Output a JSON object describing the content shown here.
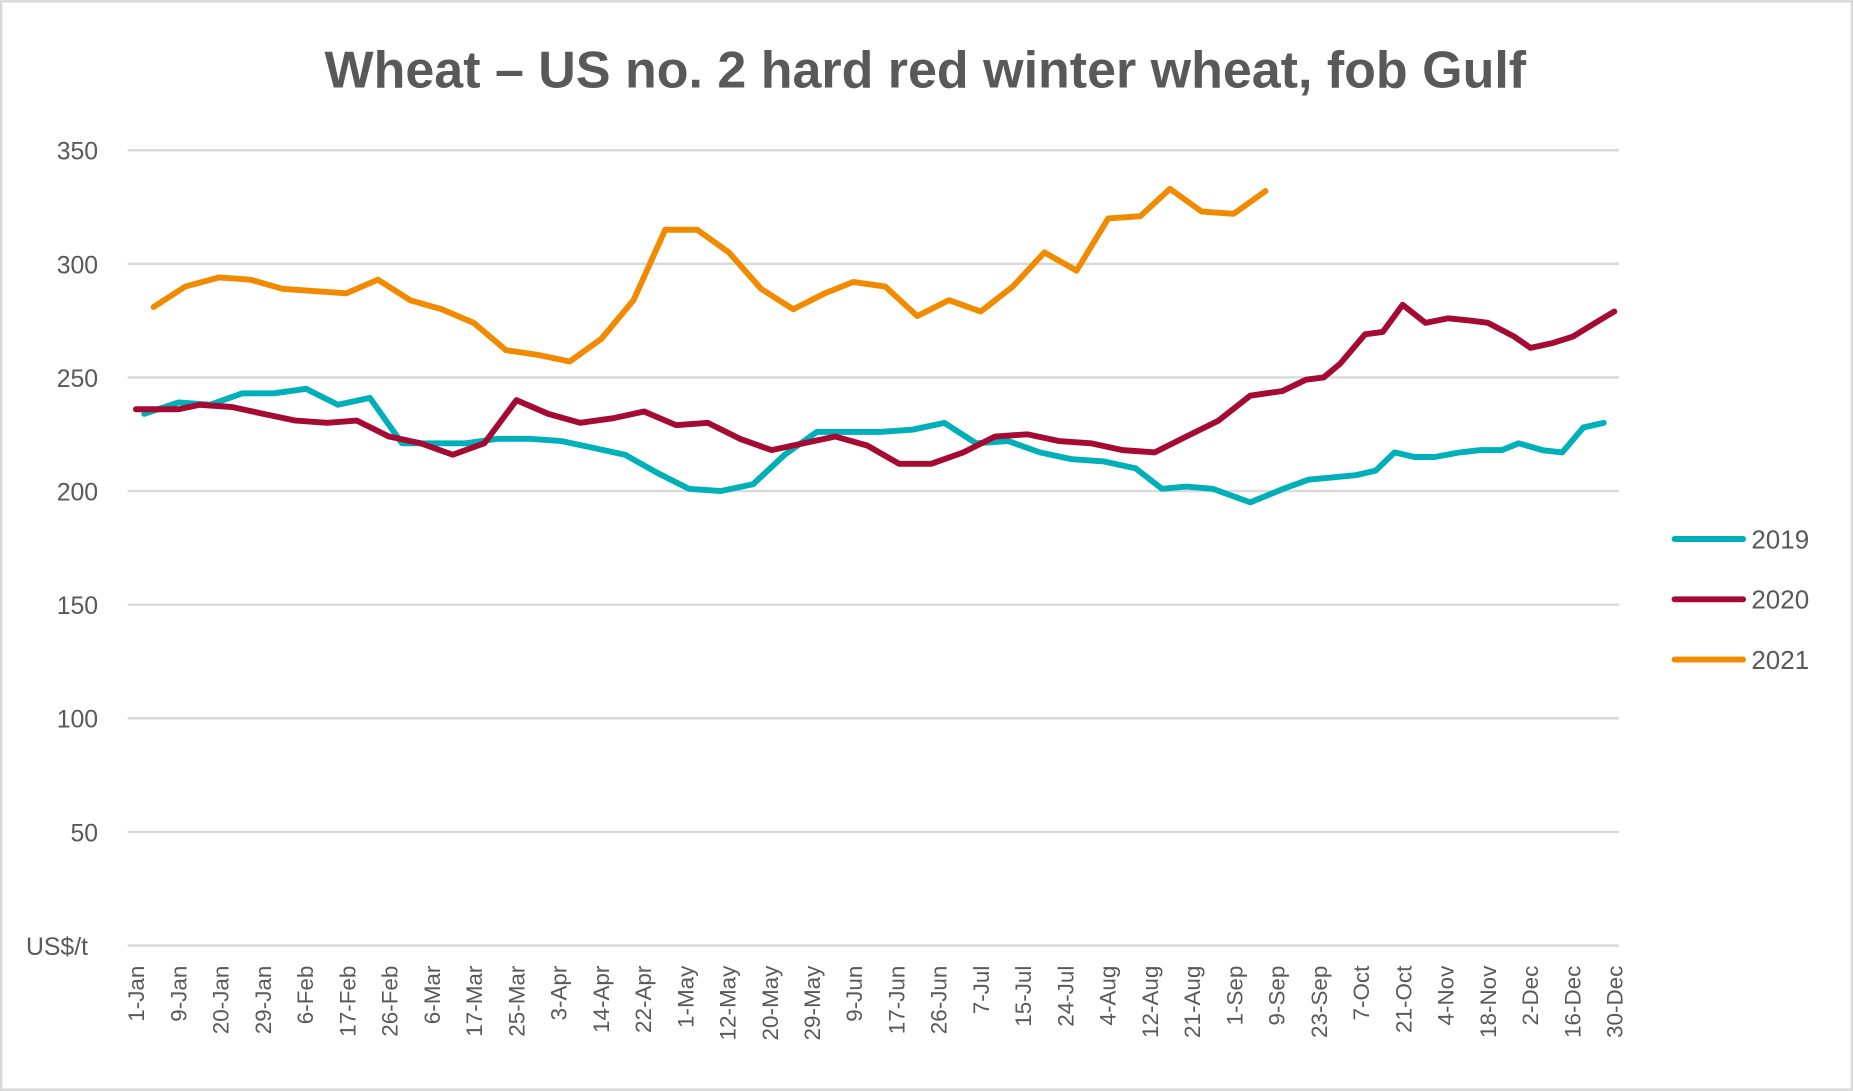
{
  "chart_data": {
    "type": "line",
    "title": "Wheat – US no. 2 hard red winter wheat, fob Gulf",
    "ylabel": "US$/t",
    "xlabel": "",
    "ylim": [
      0,
      350
    ],
    "yticks": [
      50,
      100,
      150,
      200,
      250,
      300,
      350
    ],
    "grid": true,
    "legend_position": "right",
    "x_tick_labels": [
      "1-Jan",
      "9-Jan",
      "20-Jan",
      "29-Jan",
      "6-Feb",
      "17-Feb",
      "26-Feb",
      "6-Mar",
      "17-Mar",
      "25-Mar",
      "3-Apr",
      "14-Apr",
      "22-Apr",
      "1-May",
      "12-May",
      "20-May",
      "29-May",
      "9-Jun",
      "17-Jun",
      "26-Jun",
      "7-Jul",
      "15-Jul",
      "24-Jul",
      "4-Aug",
      "12-Aug",
      "21-Aug",
      "1-Sep",
      "9-Sep",
      "23-Sep",
      "7-Oct",
      "21-Oct",
      "4-Nov",
      "18-Nov",
      "2-Dec",
      "16-Dec",
      "30-Dec"
    ],
    "series": [
      {
        "name": "2019",
        "color": "#00B0B9",
        "x": [
          0.2,
          1.01,
          1.76,
          2.52,
          3.27,
          4.03,
          4.78,
          5.54,
          6.3,
          7.05,
          7.81,
          8.56,
          9.32,
          10.07,
          10.83,
          11.58,
          12.34,
          13.09,
          13.85,
          14.61,
          15.36,
          16.12,
          16.87,
          17.63,
          18.38,
          19.14,
          19.89,
          20.65,
          21.4,
          22.16,
          22.92,
          23.67,
          24.29,
          24.87,
          25.49,
          26.38,
          27.17,
          27.76,
          28.32,
          28.88,
          29.35,
          29.8,
          30.27,
          30.75,
          31.34,
          31.81,
          32.34,
          32.74,
          33.3,
          33.77,
          34.27,
          34.75
        ],
        "values": [
          234,
          239,
          238,
          243,
          243,
          245,
          238,
          241,
          221,
          221,
          221,
          223,
          223,
          222,
          219,
          216,
          208,
          201,
          200,
          203,
          216,
          226,
          226,
          226,
          227,
          230,
          221,
          222,
          217,
          214,
          213,
          210,
          201,
          202,
          201,
          195,
          201,
          205,
          206,
          207,
          209,
          217,
          215,
          215,
          217,
          218,
          218,
          221,
          218,
          217,
          228,
          230
        ]
      },
      {
        "name": "2020",
        "color": "#A50A33",
        "x": [
          0,
          0.5,
          1.01,
          1.51,
          2.27,
          3.02,
          3.78,
          4.53,
          5.23,
          5.99,
          6.74,
          7.5,
          8.25,
          9.01,
          9.76,
          10.52,
          11.28,
          12.03,
          12.79,
          13.54,
          14.3,
          15.05,
          15.81,
          16.56,
          17.32,
          18.07,
          18.83,
          19.59,
          20.34,
          21.1,
          21.85,
          22.61,
          23.36,
          24.12,
          24.87,
          25.63,
          26.38,
          27.14,
          27.7,
          28.12,
          28.51,
          29.1,
          29.52,
          29.99,
          30.53,
          31.06,
          31.59,
          32.01,
          32.63,
          33.02,
          33.52,
          34.02,
          34.55,
          35.0
        ],
        "values": [
          236,
          236,
          236,
          238,
          237,
          234,
          231,
          230,
          231,
          224,
          221,
          216,
          221,
          240,
          234,
          230,
          232,
          235,
          229,
          230,
          223,
          218,
          221,
          224,
          220,
          212,
          212,
          217,
          224,
          225,
          222,
          221,
          218,
          217,
          224,
          231,
          242,
          244,
          249,
          250,
          256,
          269,
          270,
          282,
          274,
          276,
          275,
          274,
          268,
          263,
          265,
          268,
          274,
          279
        ]
      },
      {
        "name": "2021",
        "color": "#F28A00",
        "x": [
          0.42,
          1.17,
          1.96,
          2.71,
          3.47,
          4.22,
          4.98,
          5.73,
          6.49,
          7.24,
          8.0,
          8.76,
          9.5,
          10.27,
          11.02,
          11.78,
          12.53,
          13.29,
          14.04,
          14.8,
          15.56,
          16.31,
          16.98,
          17.74,
          18.5,
          19.25,
          20.0,
          20.76,
          21.51,
          22.27,
          23.02,
          23.78,
          24.48,
          25.23,
          25.99,
          26.74
        ],
        "values": [
          281,
          290,
          294,
          293,
          289,
          288,
          287,
          293,
          284,
          280,
          274,
          262,
          260,
          257,
          267,
          284,
          315,
          315,
          305,
          289,
          280,
          287,
          292,
          290,
          277,
          284,
          279,
          290,
          305,
          297,
          320,
          321,
          333,
          323,
          322,
          332
        ]
      }
    ]
  }
}
